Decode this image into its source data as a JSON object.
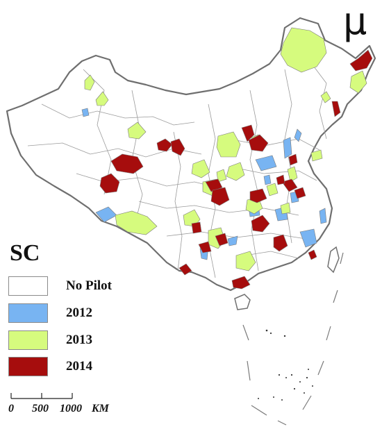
{
  "north_symbol": "μ",
  "legend": {
    "title": "SC",
    "items": [
      {
        "label": "No Pilot",
        "color": "#ffffff"
      },
      {
        "label": "2012",
        "color": "#78b4f2"
      },
      {
        "label": "2013",
        "color": "#d6fb7e"
      },
      {
        "label": "2014",
        "color": "#a60d0d"
      }
    ]
  },
  "scale_bar": {
    "ticks": [
      "0",
      "500",
      "1000"
    ],
    "unit": "KM"
  },
  "colors": {
    "boundary": "#8c8c8c",
    "border_outline": "#6f6f6f",
    "no_pilot": "#ffffff",
    "pilot_2012": "#78b4f2",
    "pilot_2013": "#d6fb7e",
    "pilot_2014": "#a60d0d"
  }
}
